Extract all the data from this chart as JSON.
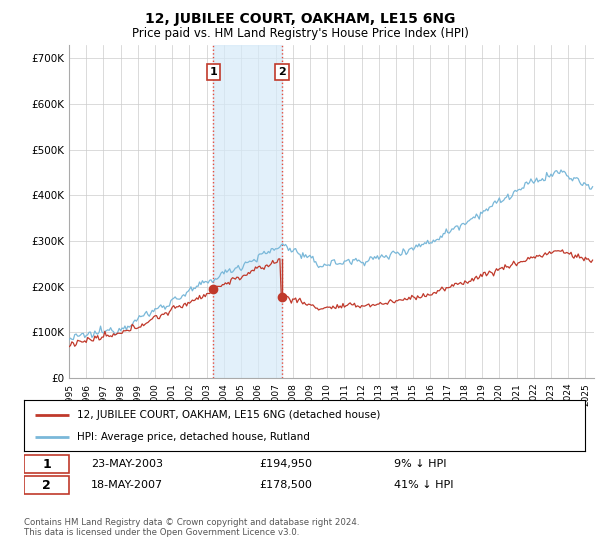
{
  "title": "12, JUBILEE COURT, OAKHAM, LE15 6NG",
  "subtitle": "Price paid vs. HM Land Registry's House Price Index (HPI)",
  "title_fontsize": 10,
  "subtitle_fontsize": 8.5,
  "yticks": [
    0,
    100000,
    200000,
    300000,
    400000,
    500000,
    600000,
    700000
  ],
  "ytick_labels": [
    "£0",
    "£100K",
    "£200K",
    "£300K",
    "£400K",
    "£500K",
    "£600K",
    "£700K"
  ],
  "xlim_start": 1995.0,
  "xlim_end": 2025.5,
  "ylim_min": 0,
  "ylim_max": 730000,
  "hpi_color": "#7ab8d9",
  "price_color": "#c0392b",
  "sale1_date": "23-MAY-2003",
  "sale1_price": 194950,
  "sale1_year": 2003.38,
  "sale1_label": "1",
  "sale2_date": "18-MAY-2007",
  "sale2_price": 178500,
  "sale2_year": 2007.37,
  "sale2_label": "2",
  "legend_line1": "12, JUBILEE COURT, OAKHAM, LE15 6NG (detached house)",
  "legend_line2": "HPI: Average price, detached house, Rutland",
  "footer_note": "Contains HM Land Registry data © Crown copyright and database right 2024.\nThis data is licensed under the Open Government Licence v3.0.",
  "background_color": "#ffffff",
  "grid_color": "#cccccc",
  "shade_color": "#d6eaf8"
}
